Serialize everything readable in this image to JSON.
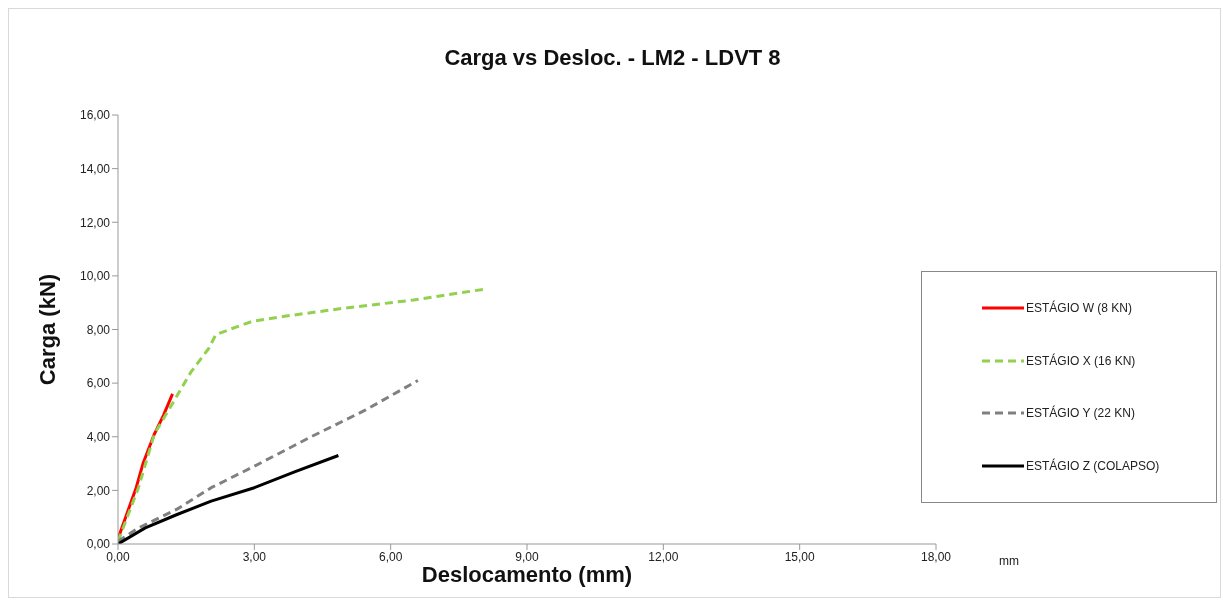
{
  "chart_data": {
    "type": "line",
    "title": "Carga vs Desloc. - LM2 - LDVT 8",
    "xlabel": "Deslocamento (mm)",
    "ylabel": "Carga (kN)",
    "annotations": [
      "mm"
    ],
    "xlim": [
      0,
      18
    ],
    "xticks": [
      {
        "value": 0,
        "label": "0,00"
      },
      {
        "value": 3,
        "label": "3,00"
      },
      {
        "value": 6,
        "label": "6,00"
      },
      {
        "value": 9,
        "label": "9,00"
      },
      {
        "value": 12,
        "label": "12,00"
      },
      {
        "value": 15,
        "label": "15,00"
      },
      {
        "value": 18,
        "label": "18,00"
      }
    ],
    "ylim": [
      0,
      16
    ],
    "yticks": [
      {
        "value": 0,
        "label": "0,00"
      },
      {
        "value": 2,
        "label": "2,00"
      },
      {
        "value": 4,
        "label": "4,00"
      },
      {
        "value": 6,
        "label": "6,00"
      },
      {
        "value": 8,
        "label": "8,00"
      },
      {
        "value": 10,
        "label": "10,00"
      },
      {
        "value": 12,
        "label": "12,00"
      },
      {
        "value": 14,
        "label": "14,00"
      },
      {
        "value": 16,
        "label": "16,00"
      }
    ],
    "legend": "right",
    "marker": "none",
    "series": [
      {
        "name": "ESTÁGIO W (8 KN)",
        "color": "#ff0000",
        "line_style": "solid",
        "x": [
          0,
          0.4,
          0.55,
          0.8,
          1.0,
          1.2
        ],
        "values": [
          0.2,
          2.1,
          3.0,
          4.1,
          4.8,
          5.6
        ]
      },
      {
        "name": "ESTÁGIO X (16 KN)",
        "color": "#92d050",
        "line_style": "dashed",
        "x": [
          0,
          0.45,
          0.8,
          1.15,
          1.6,
          2.0,
          2.15,
          2.45,
          2.95,
          3.7,
          5.0,
          6.5,
          8.05
        ],
        "values": [
          0.1,
          2.1,
          4.1,
          5.1,
          6.4,
          7.3,
          7.8,
          8.0,
          8.3,
          8.5,
          8.8,
          9.1,
          9.5
        ]
      },
      {
        "name": "ESTÁGIO Y (22 KN)",
        "color": "#808080",
        "line_style": "dashed",
        "x": [
          0,
          0.45,
          1.3,
          2.05,
          3.0,
          4.25,
          5.45,
          6.6
        ],
        "values": [
          0.1,
          0.6,
          1.3,
          2.1,
          2.9,
          4.0,
          5.0,
          6.1
        ]
      },
      {
        "name": "ESTÁGIO Z (COLAPSO)",
        "color": "#000000",
        "line_style": "solid",
        "x": [
          0,
          0.6,
          1.3,
          2.05,
          3.0,
          3.9,
          4.85
        ],
        "values": [
          0,
          0.6,
          1.1,
          1.6,
          2.1,
          2.7,
          3.3
        ]
      }
    ]
  }
}
